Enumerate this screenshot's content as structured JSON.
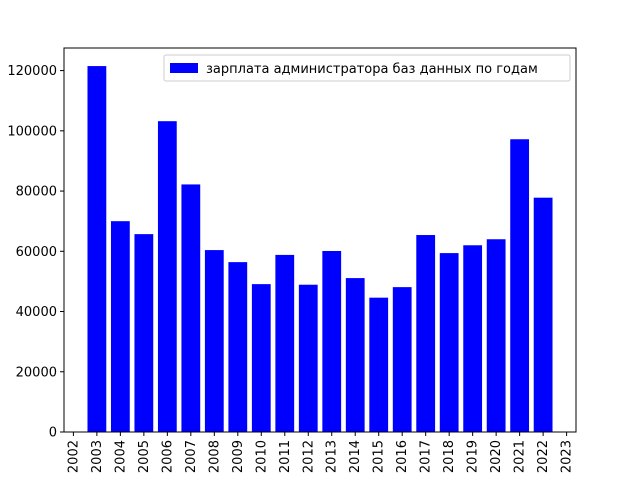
{
  "chart_data": {
    "type": "bar",
    "title": "",
    "xlabel": "",
    "ylabel": "",
    "categories": [
      "2003",
      "2004",
      "2005",
      "2006",
      "2007",
      "2008",
      "2009",
      "2010",
      "2011",
      "2012",
      "2013",
      "2014",
      "2015",
      "2016",
      "2017",
      "2018",
      "2019",
      "2020",
      "2021",
      "2022"
    ],
    "series": [
      {
        "name": "зарплата администратора баз данных по годам",
        "color": "#0000ff",
        "values": [
          121500,
          70000,
          65700,
          103200,
          82200,
          60400,
          56400,
          49100,
          58800,
          48900,
          60100,
          51100,
          44600,
          48100,
          65400,
          59400,
          62000,
          64000,
          97200,
          77800
        ]
      }
    ],
    "x_ticks": [
      "2002",
      "2003",
      "2004",
      "2005",
      "2006",
      "2007",
      "2008",
      "2009",
      "2010",
      "2011",
      "2012",
      "2013",
      "2014",
      "2015",
      "2016",
      "2017",
      "2018",
      "2019",
      "2020",
      "2021",
      "2022",
      "2023"
    ],
    "xlim": [
      2001.6,
      2023.4
    ],
    "y_ticks": [
      "0",
      "20000",
      "40000",
      "60000",
      "80000",
      "100000",
      "120000"
    ],
    "y_tick_values": [
      0,
      20000,
      40000,
      60000,
      80000,
      100000,
      120000
    ],
    "ylim": [
      0,
      127500
    ],
    "legend_position": "top-right",
    "grid": false
  }
}
